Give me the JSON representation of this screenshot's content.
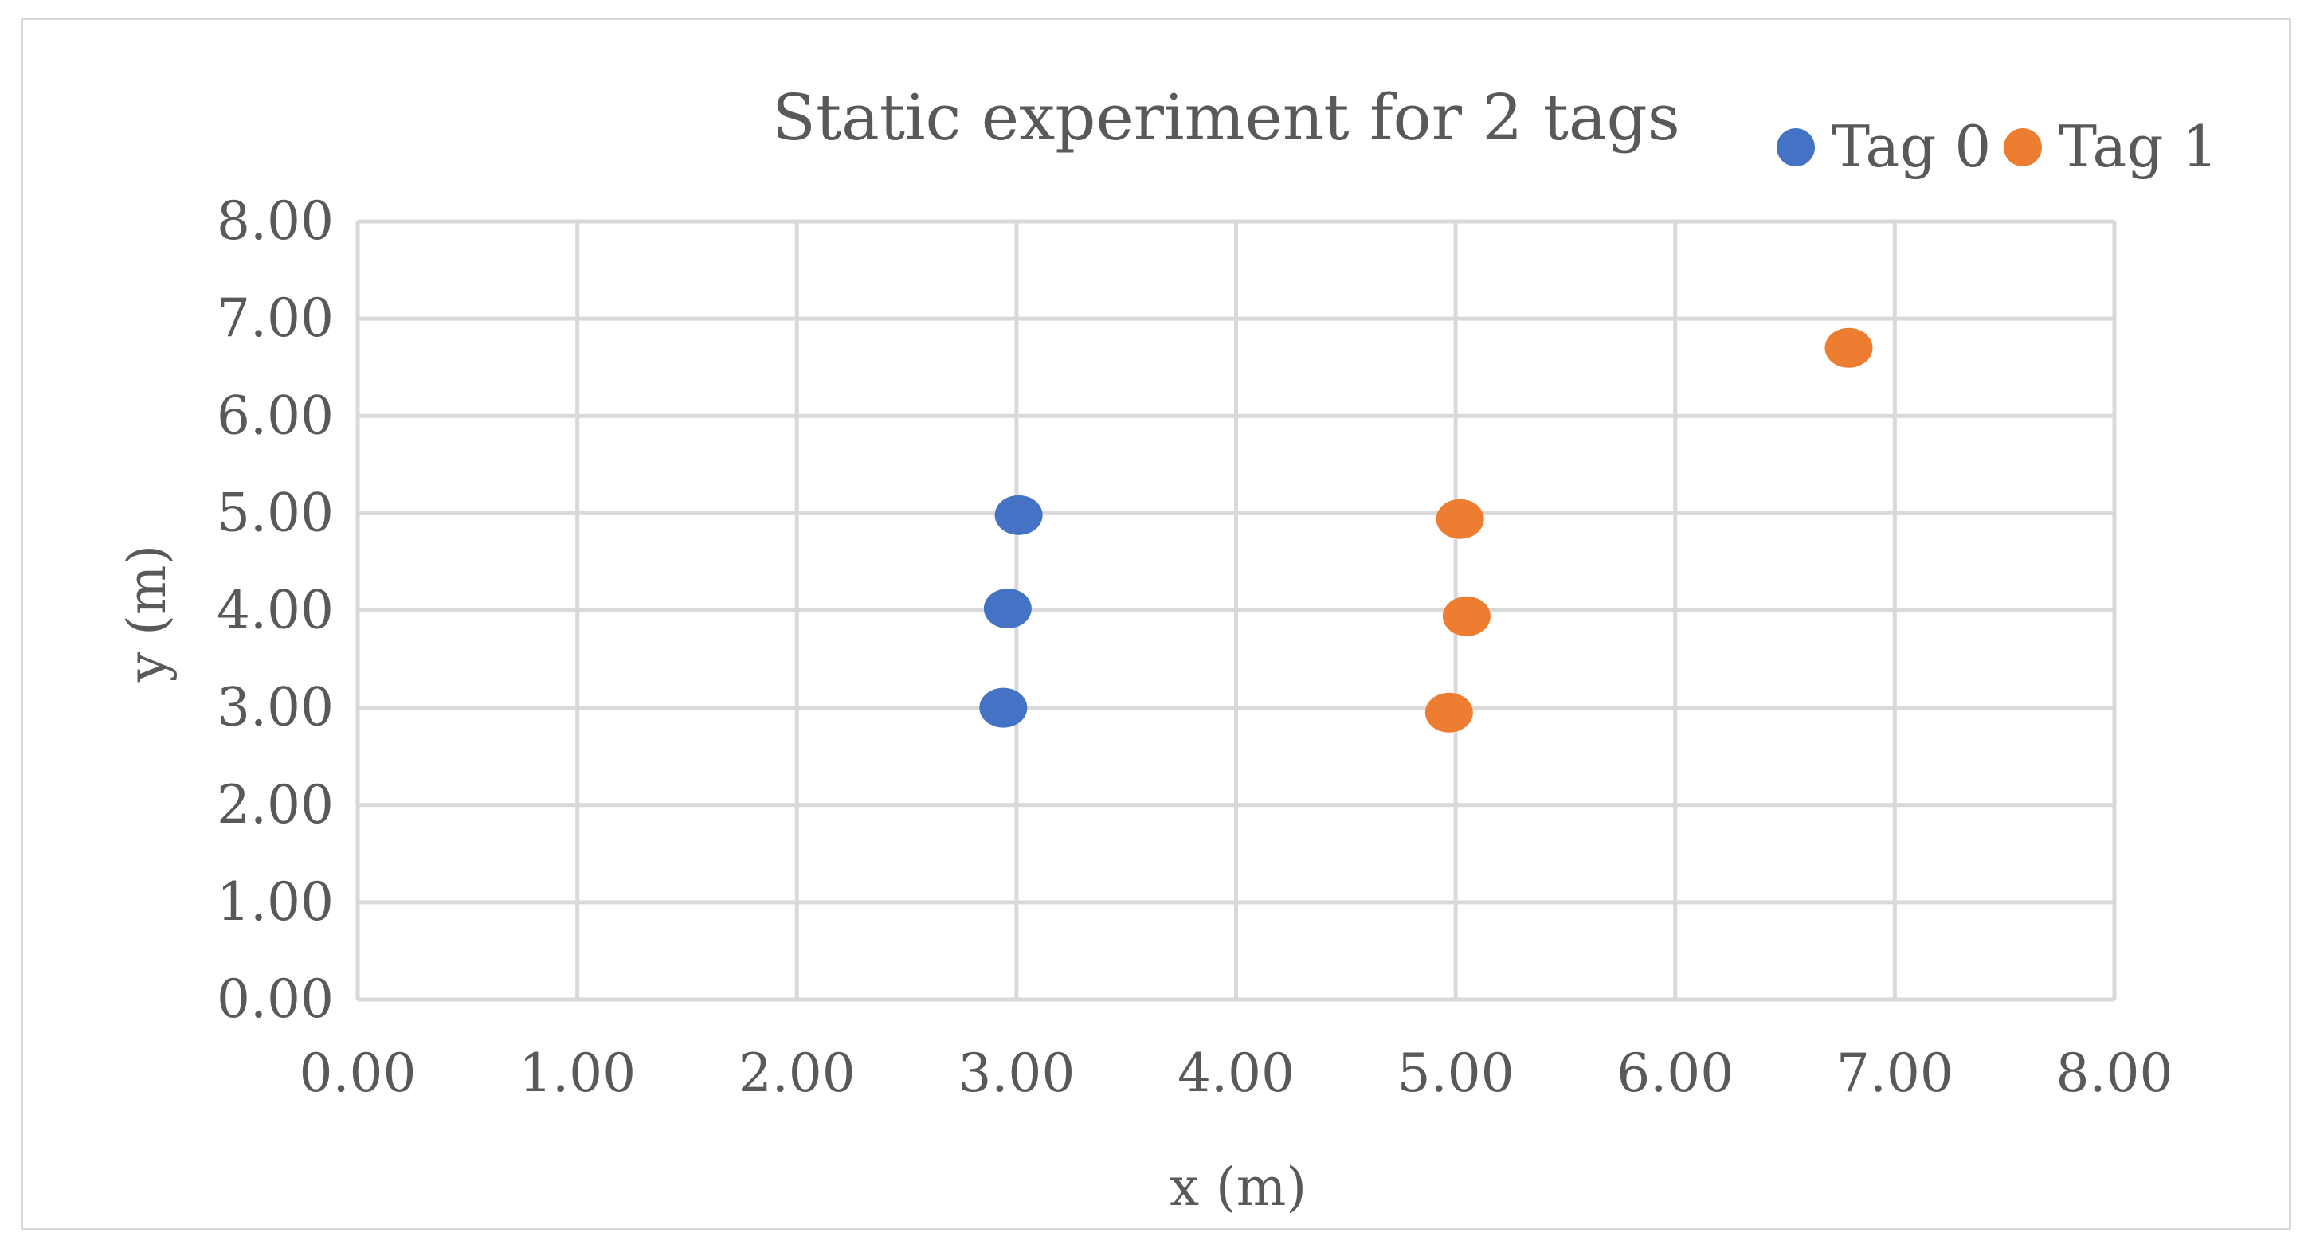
{
  "chart_data": {
    "type": "scatter",
    "title": "Static experiment for 2 tags",
    "xlabel": "x (m)",
    "ylabel": "y (m)",
    "xlim": [
      0,
      8
    ],
    "ylim": [
      0,
      8
    ],
    "xticks": [
      "0.00",
      "1.00",
      "2.00",
      "3.00",
      "4.00",
      "5.00",
      "6.00",
      "7.00",
      "8.00"
    ],
    "yticks": [
      "0.00",
      "1.00",
      "2.00",
      "3.00",
      "4.00",
      "5.00",
      "6.00",
      "7.00",
      "8.00"
    ],
    "grid": true,
    "legend_position": "top-right",
    "series": [
      {
        "name": "Tag 0",
        "color": "#4472c4",
        "points": [
          {
            "x": 3.01,
            "y": 4.98
          },
          {
            "x": 2.96,
            "y": 4.02
          },
          {
            "x": 2.94,
            "y": 3.0
          }
        ]
      },
      {
        "name": "Tag 1",
        "color": "#ed7d31",
        "points": [
          {
            "x": 6.79,
            "y": 6.7
          },
          {
            "x": 5.02,
            "y": 4.94
          },
          {
            "x": 5.05,
            "y": 3.94
          },
          {
            "x": 4.97,
            "y": 2.95
          }
        ]
      }
    ]
  }
}
